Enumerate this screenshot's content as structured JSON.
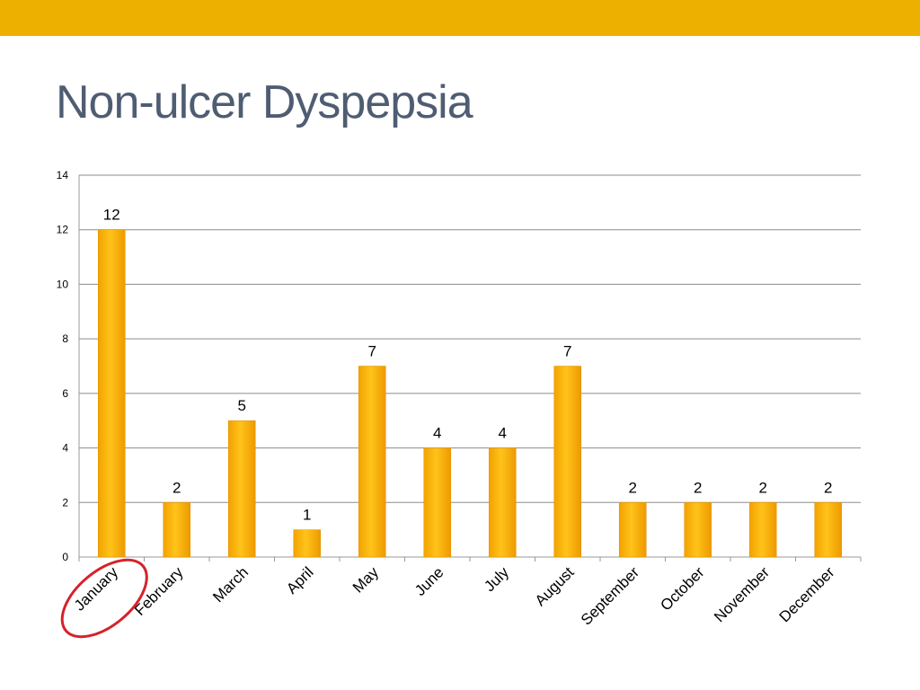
{
  "slide": {
    "title": "Non-ulcer Dyspepsia",
    "accent_color": "#eeb000",
    "title_color": "#4f5d73"
  },
  "chart_data": {
    "type": "bar",
    "categories": [
      "January",
      "February",
      "March",
      "April",
      "May",
      "June",
      "July",
      "August",
      "September",
      "October",
      "November",
      "December"
    ],
    "values": [
      12,
      2,
      5,
      1,
      7,
      4,
      4,
      7,
      2,
      2,
      2,
      2
    ],
    "data_labels": [
      "12",
      "2",
      "5",
      "1",
      "7",
      "4",
      "4",
      "7",
      "2",
      "2",
      "2",
      "2"
    ],
    "yticks": [
      "0",
      "2",
      "4",
      "6",
      "8",
      "10",
      "12",
      "14"
    ],
    "ylim": [
      0,
      14
    ],
    "grid": true,
    "legend": "none",
    "bar_color": "#f5a800",
    "highlight": {
      "category": "January",
      "shape": "ellipse",
      "color": "#d6222a"
    }
  }
}
